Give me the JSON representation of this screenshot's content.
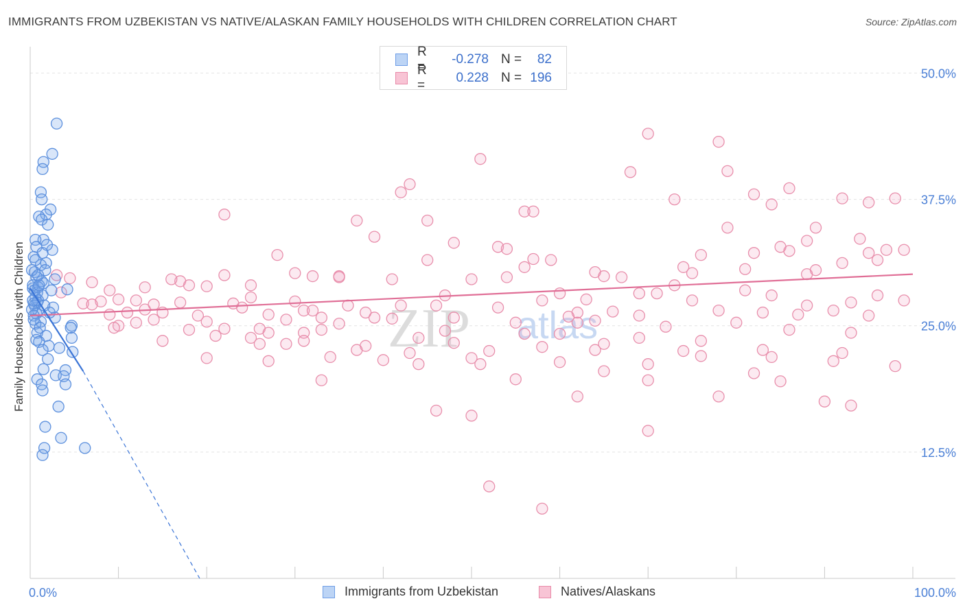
{
  "title": "IMMIGRANTS FROM UZBEKISTAN VS NATIVE/ALASKAN FAMILY HOUSEHOLDS WITH CHILDREN CORRELATION CHART",
  "source": "Source: ZipAtlas.com",
  "watermark": {
    "zip": "ZIP",
    "atlas": "atlas"
  },
  "legend": {
    "rows": [
      {
        "r_label": "R =",
        "r_value": "-0.278",
        "n_label": "N =",
        "n_value": "82",
        "color": "#6d9de6",
        "fill": "#bcd4f5"
      },
      {
        "r_label": "R =",
        "r_value": "0.228",
        "n_label": "N =",
        "n_value": "196",
        "color": "#e889a8",
        "fill": "#f8c4d5"
      }
    ]
  },
  "colors": {
    "blue_stroke": "#5b8fdd",
    "blue_fill": "rgba(120,165,235,0.28)",
    "blue_line": "#3a74d6",
    "pink_stroke": "#e88eab",
    "pink_fill": "rgba(240,160,190,0.22)",
    "pink_line": "#e06e96",
    "grid": "#e4e4e4",
    "axis_label": "#4a7fd6"
  },
  "chart_data": {
    "type": "scatter",
    "title": "IMMIGRANTS FROM UZBEKISTAN VS NATIVE/ALASKAN FAMILY HOUSEHOLDS WITH CHILDREN CORRELATION CHART",
    "xlabel": "",
    "ylabel": "Family Households with Children",
    "x_tick_labels": [
      "0.0%",
      "100.0%"
    ],
    "y_tick_labels": [
      "12.5%",
      "25.0%",
      "37.5%",
      "50.0%"
    ],
    "y_ticks": [
      12.5,
      25.0,
      37.5,
      50.0
    ],
    "xlim": [
      0,
      100
    ],
    "ylim": [
      0,
      52
    ],
    "grid": true,
    "series": [
      {
        "name": "Immigrants from Uzbekistan",
        "color": "#6d9de6",
        "trend": {
          "x0": 0,
          "y0": 28.7,
          "x1": 6.0,
          "y1": 20.5,
          "dash_x1": 19.2,
          "dash_y1": 0.0
        },
        "points": [
          [
            3.0,
            45.0
          ],
          [
            2.5,
            42.0
          ],
          [
            1.5,
            41.2
          ],
          [
            1.4,
            40.5
          ],
          [
            1.2,
            38.2
          ],
          [
            1.3,
            37.5
          ],
          [
            2.3,
            36.5
          ],
          [
            1.8,
            36.0
          ],
          [
            1.0,
            35.8
          ],
          [
            1.3,
            35.5
          ],
          [
            2.0,
            35.0
          ],
          [
            1.5,
            33.5
          ],
          [
            0.6,
            33.5
          ],
          [
            0.7,
            32.8
          ],
          [
            2.5,
            32.5
          ],
          [
            1.4,
            32.2
          ],
          [
            0.4,
            31.8
          ],
          [
            1.8,
            31.2
          ],
          [
            1.2,
            31.0
          ],
          [
            1.7,
            30.5
          ],
          [
            0.5,
            30.3
          ],
          [
            0.7,
            29.8
          ],
          [
            1.3,
            29.4
          ],
          [
            1.5,
            29.2
          ],
          [
            0.9,
            28.8
          ],
          [
            0.3,
            28.7
          ],
          [
            0.8,
            28.3
          ],
          [
            1.4,
            28.0
          ],
          [
            0.6,
            27.8
          ],
          [
            0.9,
            27.5
          ],
          [
            4.2,
            28.6
          ],
          [
            2.4,
            28.5
          ],
          [
            0.8,
            27.3
          ],
          [
            0.4,
            27.2
          ],
          [
            0.5,
            27.0
          ],
          [
            2.6,
            26.8
          ],
          [
            0.9,
            26.5
          ],
          [
            0.7,
            26.2
          ],
          [
            0.2,
            26.6
          ],
          [
            0.4,
            26.0
          ],
          [
            2.8,
            25.8
          ],
          [
            1.2,
            25.4
          ],
          [
            0.6,
            25.2
          ],
          [
            4.7,
            25.0
          ],
          [
            4.6,
            24.8
          ],
          [
            0.8,
            24.3
          ],
          [
            1.8,
            24.0
          ],
          [
            4.7,
            23.8
          ],
          [
            0.7,
            23.6
          ],
          [
            1.0,
            23.4
          ],
          [
            2.1,
            23.0
          ],
          [
            3.3,
            22.8
          ],
          [
            1.4,
            22.6
          ],
          [
            4.8,
            22.4
          ],
          [
            2.0,
            21.7
          ],
          [
            1.5,
            20.7
          ],
          [
            4.0,
            20.6
          ],
          [
            2.9,
            20.1
          ],
          [
            3.8,
            20.0
          ],
          [
            0.8,
            19.7
          ],
          [
            1.3,
            19.2
          ],
          [
            4.0,
            19.2
          ],
          [
            1.4,
            18.6
          ],
          [
            3.2,
            17.0
          ],
          [
            1.7,
            15.0
          ],
          [
            3.5,
            13.9
          ],
          [
            1.6,
            12.9
          ],
          [
            6.2,
            12.9
          ],
          [
            1.4,
            12.2
          ],
          [
            0.3,
            29.0
          ],
          [
            0.5,
            28.5
          ],
          [
            1.0,
            29.0
          ],
          [
            0.3,
            27.5
          ],
          [
            1.6,
            27.0
          ],
          [
            2.2,
            26.3
          ],
          [
            0.4,
            25.6
          ],
          [
            1.1,
            24.8
          ],
          [
            0.2,
            30.5
          ],
          [
            0.6,
            31.5
          ],
          [
            1.9,
            33.0
          ],
          [
            0.9,
            30.0
          ],
          [
            2.8,
            29.6
          ]
        ]
      },
      {
        "name": "Natives/Alaskans",
        "color": "#e889a8",
        "trend": {
          "x0": 0,
          "y0": 26.0,
          "x1": 100,
          "y1": 30.1
        },
        "points": [
          [
            70,
            44.0
          ],
          [
            78,
            43.2
          ],
          [
            51,
            41.5
          ],
          [
            68,
            40.2
          ],
          [
            79,
            40.3
          ],
          [
            43,
            39.0
          ],
          [
            42,
            38.2
          ],
          [
            82,
            38.0
          ],
          [
            86,
            38.6
          ],
          [
            73,
            37.5
          ],
          [
            92,
            37.6
          ],
          [
            98,
            37.6
          ],
          [
            95,
            37.2
          ],
          [
            84,
            37.0
          ],
          [
            56,
            36.3
          ],
          [
            57,
            36.3
          ],
          [
            22,
            36.0
          ],
          [
            37,
            35.4
          ],
          [
            45,
            35.4
          ],
          [
            79,
            34.7
          ],
          [
            89,
            34.7
          ],
          [
            39,
            33.8
          ],
          [
            48,
            33.2
          ],
          [
            88,
            33.4
          ],
          [
            94,
            33.6
          ],
          [
            85,
            32.8
          ],
          [
            53,
            32.8
          ],
          [
            54,
            32.6
          ],
          [
            86,
            32.4
          ],
          [
            97,
            32.5
          ],
          [
            82,
            32.2
          ],
          [
            95,
            32.2
          ],
          [
            28,
            32.0
          ],
          [
            76,
            32.0
          ],
          [
            45,
            31.5
          ],
          [
            57,
            31.6
          ],
          [
            59,
            31.5
          ],
          [
            99,
            32.5
          ],
          [
            74,
            30.8
          ],
          [
            56,
            30.8
          ],
          [
            64,
            30.3
          ],
          [
            81,
            30.6
          ],
          [
            96,
            31.5
          ],
          [
            92,
            31.2
          ],
          [
            89,
            30.5
          ],
          [
            75,
            30.2
          ],
          [
            30,
            30.2
          ],
          [
            32,
            29.9
          ],
          [
            35,
            29.8
          ],
          [
            41,
            29.6
          ],
          [
            50,
            29.6
          ],
          [
            65,
            29.9
          ],
          [
            67,
            29.8
          ],
          [
            54,
            29.8
          ],
          [
            88,
            30.1
          ],
          [
            35,
            29.9
          ],
          [
            22,
            30.0
          ],
          [
            17,
            29.4
          ],
          [
            3,
            30.0
          ],
          [
            4.5,
            29.7
          ],
          [
            7,
            29.3
          ],
          [
            16,
            29.6
          ],
          [
            18,
            29.0
          ],
          [
            25,
            29.0
          ],
          [
            20,
            28.9
          ],
          [
            9,
            28.5
          ],
          [
            13,
            28.8
          ],
          [
            3.5,
            28.3
          ],
          [
            47,
            28.0
          ],
          [
            60,
            28.2
          ],
          [
            71,
            28.2
          ],
          [
            81,
            28.5
          ],
          [
            96,
            28.0
          ],
          [
            84,
            28.0
          ],
          [
            73,
            29.0
          ],
          [
            25,
            27.8
          ],
          [
            12,
            27.5
          ],
          [
            17,
            27.3
          ],
          [
            8,
            27.4
          ],
          [
            10,
            27.6
          ],
          [
            23,
            27.2
          ],
          [
            14,
            27.1
          ],
          [
            30,
            27.4
          ],
          [
            36,
            27.0
          ],
          [
            42,
            27.0
          ],
          [
            46,
            27.0
          ],
          [
            58,
            27.5
          ],
          [
            63,
            27.6
          ],
          [
            69,
            28.2
          ],
          [
            75,
            27.5
          ],
          [
            88,
            27.0
          ],
          [
            93,
            27.3
          ],
          [
            99,
            27.5
          ],
          [
            6,
            27.2
          ],
          [
            7,
            27.1
          ],
          [
            24,
            26.8
          ],
          [
            31,
            26.5
          ],
          [
            32,
            26.5
          ],
          [
            38,
            26.3
          ],
          [
            53,
            26.8
          ],
          [
            62,
            26.3
          ],
          [
            66,
            26.4
          ],
          [
            78,
            26.5
          ],
          [
            83,
            26.3
          ],
          [
            91,
            26.5
          ],
          [
            9,
            26.1
          ],
          [
            11,
            26.3
          ],
          [
            13,
            26.6
          ],
          [
            15,
            26.3
          ],
          [
            19,
            26.0
          ],
          [
            27,
            26.1
          ],
          [
            33,
            25.8
          ],
          [
            39,
            25.8
          ],
          [
            48,
            25.8
          ],
          [
            61,
            25.9
          ],
          [
            69,
            26.0
          ],
          [
            87,
            26.1
          ],
          [
            95,
            26.0
          ],
          [
            12,
            25.3
          ],
          [
            14,
            25.6
          ],
          [
            20,
            25.4
          ],
          [
            29,
            25.6
          ],
          [
            35,
            25.2
          ],
          [
            41,
            25.7
          ],
          [
            55,
            25.3
          ],
          [
            62,
            25.3
          ],
          [
            80,
            25.3
          ],
          [
            10,
            25.0
          ],
          [
            9.5,
            24.8
          ],
          [
            18,
            24.6
          ],
          [
            22,
            24.7
          ],
          [
            26,
            24.7
          ],
          [
            27,
            24.3
          ],
          [
            31,
            24.3
          ],
          [
            33,
            24.6
          ],
          [
            47,
            24.5
          ],
          [
            56,
            24.2
          ],
          [
            64,
            25.5
          ],
          [
            72,
            24.9
          ],
          [
            86,
            24.6
          ],
          [
            93,
            24.3
          ],
          [
            21,
            24.0
          ],
          [
            25,
            23.8
          ],
          [
            31,
            23.5
          ],
          [
            38,
            23.0
          ],
          [
            44,
            23.8
          ],
          [
            48,
            23.3
          ],
          [
            58,
            22.9
          ],
          [
            60,
            24.2
          ],
          [
            65,
            23.2
          ],
          [
            69,
            23.8
          ],
          [
            76,
            23.5
          ],
          [
            15,
            23.5
          ],
          [
            26,
            23.2
          ],
          [
            29,
            23.2
          ],
          [
            37,
            22.6
          ],
          [
            43,
            22.3
          ],
          [
            52,
            22.5
          ],
          [
            64,
            22.6
          ],
          [
            74,
            22.5
          ],
          [
            83,
            22.6
          ],
          [
            92,
            22.3
          ],
          [
            20,
            21.8
          ],
          [
            27,
            21.5
          ],
          [
            34,
            21.9
          ],
          [
            40,
            21.6
          ],
          [
            44,
            21.2
          ],
          [
            51,
            21.2
          ],
          [
            60,
            21.4
          ],
          [
            70,
            21.2
          ],
          [
            76,
            22.0
          ],
          [
            84,
            21.9
          ],
          [
            91,
            21.5
          ],
          [
            50,
            21.8
          ],
          [
            98,
            21.0
          ],
          [
            65,
            20.5
          ],
          [
            82,
            20.3
          ],
          [
            70,
            19.6
          ],
          [
            55,
            19.7
          ],
          [
            85,
            19.5
          ],
          [
            33,
            19.6
          ],
          [
            78,
            18.0
          ],
          [
            62,
            18.0
          ],
          [
            90,
            17.5
          ],
          [
            46,
            16.6
          ],
          [
            50,
            16.1
          ],
          [
            93,
            17.1
          ],
          [
            70,
            14.6
          ],
          [
            52,
            9.1
          ],
          [
            58,
            6.9
          ]
        ]
      }
    ]
  },
  "bottom_legend": {
    "items": [
      {
        "label": "Immigrants from Uzbekistan"
      },
      {
        "label": "Natives/Alaskans"
      }
    ]
  }
}
